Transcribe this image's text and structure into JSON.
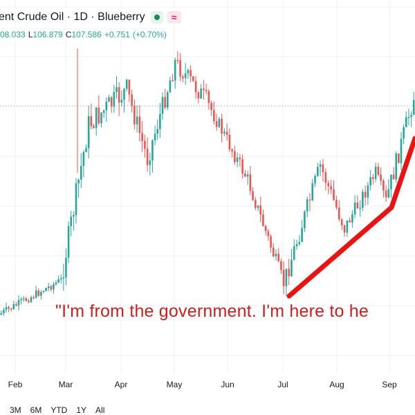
{
  "header": {
    "title": "ent Crude Oil · 1D · Blueberry",
    "status_dot_color": "#1e8a5c",
    "wave_icon": "wave-icon",
    "wave_icon_text": "≈",
    "wave_color": "#e91e63"
  },
  "ohlc": {
    "open_value": "08.033",
    "low_label": "L",
    "low_value": "106.879",
    "close_label": "C",
    "close_value": "107.586",
    "change_value": "+0.751",
    "change_pct": "(+0.70%)",
    "value_color": "#26a69a"
  },
  "annotation": {
    "text": "\"I'm from the government. I'm here to he",
    "color": "#cc1f1f"
  },
  "timeline": {
    "months": [
      "Feb",
      "Mar",
      "Apr",
      "May",
      "Jun",
      "Jul",
      "Aug",
      "Sep"
    ]
  },
  "ranges": [
    "3M",
    "6M",
    "YTD",
    "1Y",
    "All"
  ],
  "colors": {
    "up": "#26a69a",
    "down": "#ef5350",
    "grid": "#eef0f3",
    "arrow": "#ee1111"
  },
  "chart_data": {
    "type": "candlestick",
    "series": [
      {
        "segments": [
          {
            "start": 0,
            "end": 90,
            "bars": 25,
            "from": 455,
            "to": 405,
            "vol": 12,
            "drift": 0
          },
          {
            "start": 90,
            "end": 130,
            "bars": 11,
            "from": 405,
            "to": 180,
            "vol": 35,
            "drift": 0
          },
          {
            "start": 130,
            "end": 185,
            "bars": 15,
            "from": 180,
            "to": 130,
            "vol": 35,
            "drift": 0
          },
          {
            "start": 185,
            "end": 215,
            "bars": 8,
            "from": 130,
            "to": 230,
            "vol": 30,
            "drift": 0
          },
          {
            "start": 215,
            "end": 255,
            "bars": 11,
            "from": 230,
            "to": 90,
            "vol": 30,
            "drift": 0
          },
          {
            "start": 255,
            "end": 300,
            "bars": 12,
            "from": 90,
            "to": 145,
            "vol": 28,
            "drift": 0
          },
          {
            "start": 300,
            "end": 360,
            "bars": 16,
            "from": 145,
            "to": 260,
            "vol": 22,
            "drift": 0
          },
          {
            "start": 360,
            "end": 412,
            "bars": 14,
            "from": 260,
            "to": 410,
            "vol": 22,
            "drift": 0
          },
          {
            "start": 412,
            "end": 465,
            "bars": 14,
            "from": 410,
            "to": 240,
            "vol": 28,
            "drift": 0
          },
          {
            "start": 465,
            "end": 500,
            "bars": 9,
            "from": 240,
            "to": 330,
            "vol": 25,
            "drift": 0
          },
          {
            "start": 500,
            "end": 545,
            "bars": 12,
            "from": 330,
            "to": 250,
            "vol": 22,
            "drift": 0
          },
          {
            "start": 545,
            "end": 560,
            "bars": 4,
            "from": 250,
            "to": 290,
            "vol": 18,
            "drift": 0
          },
          {
            "start": 560,
            "end": 600,
            "bars": 11,
            "from": 290,
            "to": 140,
            "vol": 28,
            "drift": 0
          }
        ]
      }
    ]
  }
}
